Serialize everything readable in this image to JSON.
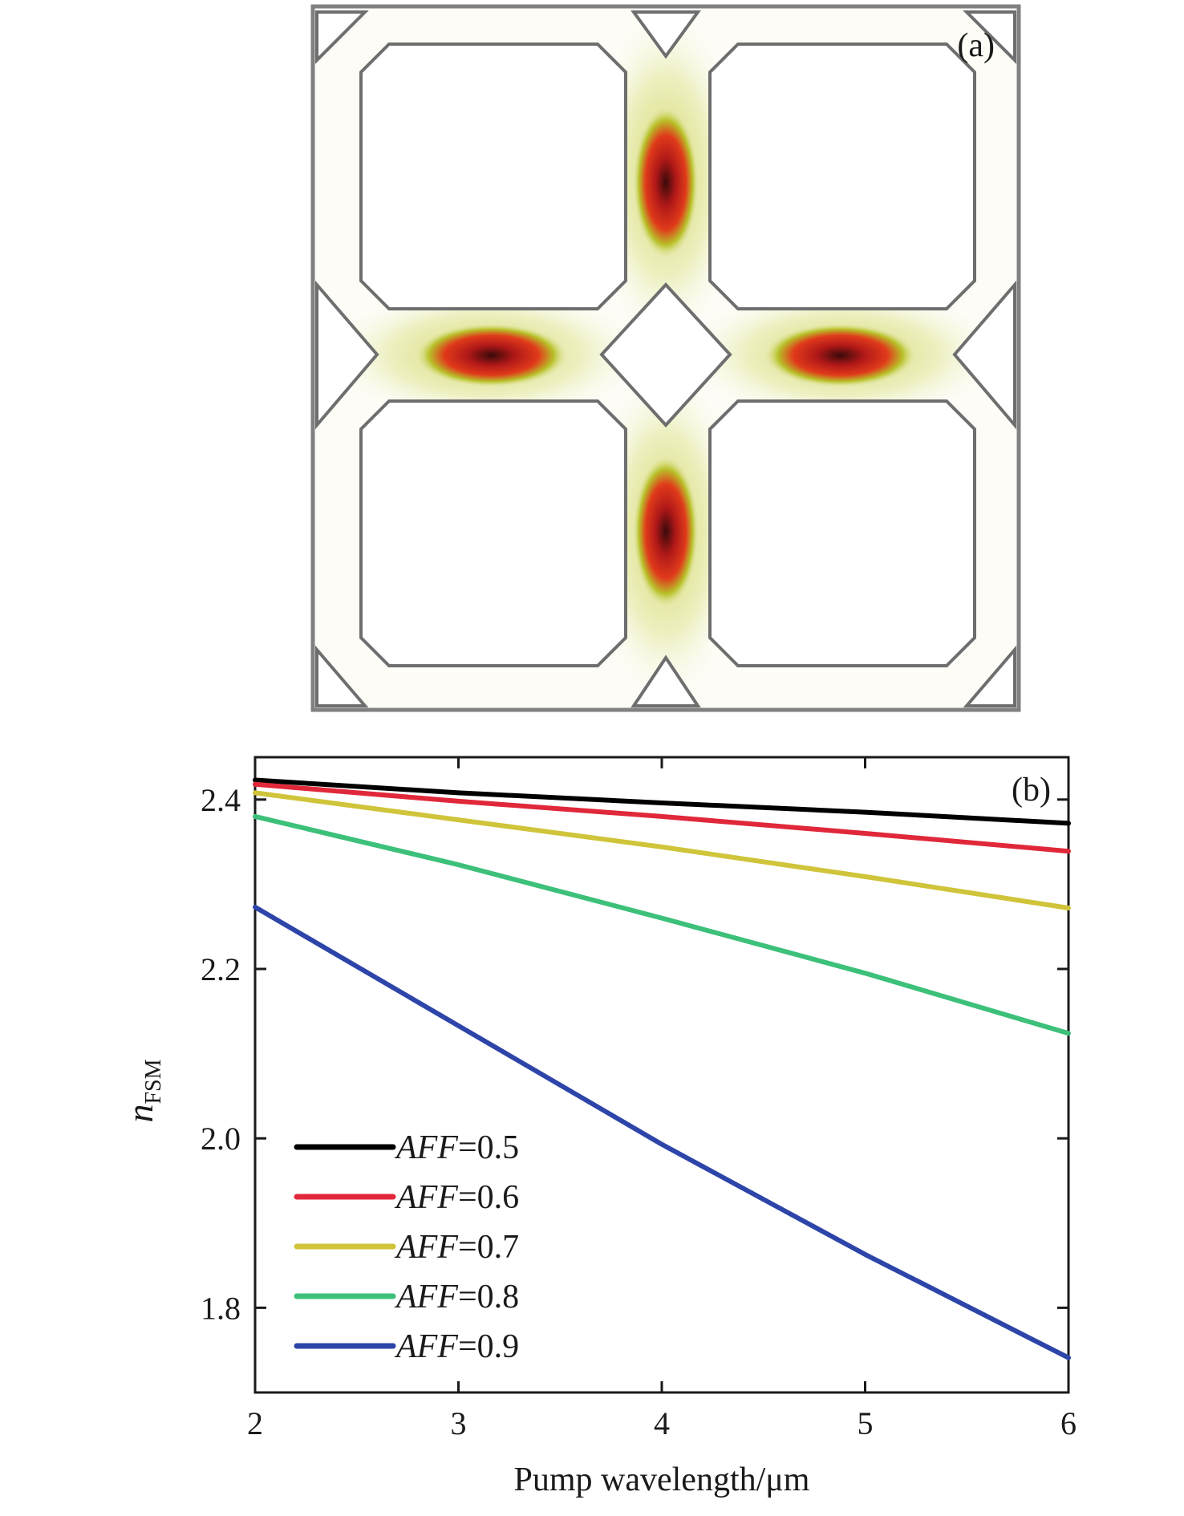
{
  "panel_a": {
    "label": "(a)"
  },
  "panel_b": {
    "label": "(b)"
  },
  "chart_data": {
    "type": "line",
    "xlabel": "Pump wavelength/μm",
    "ylabel_main": "n",
    "ylabel_sub": "FSM",
    "xlim": [
      2,
      6
    ],
    "ylim": [
      1.7,
      2.45
    ],
    "xticks": [
      2,
      3,
      4,
      5,
      6
    ],
    "xtick_labels": [
      "2",
      "3",
      "4",
      "5",
      "6"
    ],
    "yticks": [
      1.8,
      2.0,
      2.2,
      2.4
    ],
    "ytick_labels": [
      "1.8",
      "2.0",
      "2.2",
      "2.4"
    ],
    "grid": false,
    "legend_position": "bottom-left",
    "x": [
      2,
      3,
      4,
      5,
      6
    ],
    "series": [
      {
        "name": "AFF=0.5",
        "legend_italic": "AFF",
        "legend_value": "=0.5",
        "color": "#000000",
        "values": [
          2.423,
          2.408,
          2.396,
          2.385,
          2.372
        ]
      },
      {
        "name": "AFF=0.6",
        "legend_italic": "AFF",
        "legend_value": "=0.6",
        "color": "#e0283a",
        "values": [
          2.418,
          2.398,
          2.38,
          2.36,
          2.339
        ]
      },
      {
        "name": "AFF=0.7",
        "legend_italic": "AFF",
        "legend_value": "=0.7",
        "color": "#cfc43a",
        "values": [
          2.408,
          2.376,
          2.344,
          2.309,
          2.272
        ]
      },
      {
        "name": "AFF=0.8",
        "legend_italic": "AFF",
        "legend_value": "=0.8",
        "color": "#3cc07a",
        "values": [
          2.38,
          2.323,
          2.26,
          2.195,
          2.124
        ]
      },
      {
        "name": "AFF=0.9",
        "legend_italic": "AFF",
        "legend_value": "=0.9",
        "color": "#2d45a8",
        "values": [
          2.273,
          2.133,
          1.993,
          1.863,
          1.741
        ]
      }
    ]
  }
}
